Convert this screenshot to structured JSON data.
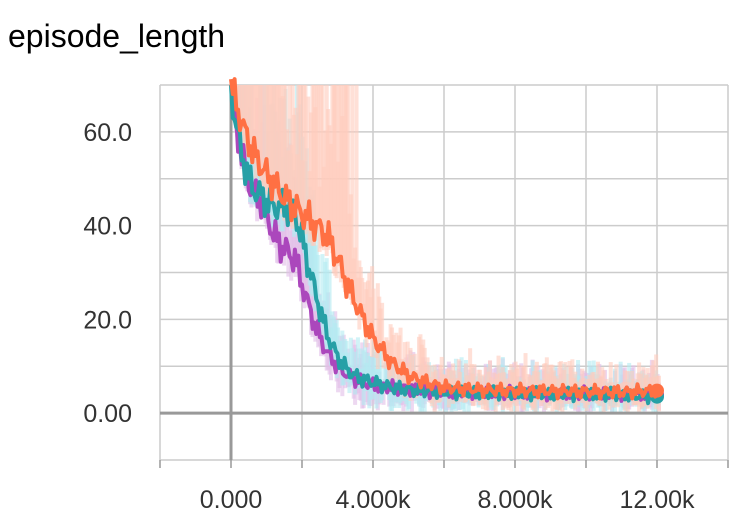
{
  "chart_data": {
    "type": "line",
    "title": "episode_length",
    "xlabel": "",
    "ylabel": "",
    "xlim": [
      -2000,
      14000
    ],
    "ylim": [
      -10,
      70
    ],
    "grid": true,
    "x_ticks": [
      0,
      4000,
      8000,
      12000
    ],
    "x_tick_labels": [
      "0.000",
      "4.000k",
      "8.000k",
      "12.00k"
    ],
    "y_ticks": [
      0,
      20,
      40,
      60
    ],
    "y_tick_labels": [
      "0.00",
      "20.0",
      "40.0",
      "60.0"
    ],
    "colors": {
      "orange": "#ff7043",
      "teal": "#26a0a6",
      "purple": "#ab47bc",
      "orange_raw": "#ffccbc",
      "teal_raw": "#b2ebf2",
      "purple_raw": "#e1bee7",
      "grid": "#cccccc",
      "axis": "#999999"
    },
    "series": [
      {
        "color": "#ab47bc",
        "x": [
          0,
          300,
          600,
          900,
          1200,
          1500,
          1800,
          2100,
          2400,
          2700,
          3000,
          3300,
          3600,
          4000,
          4500,
          5000,
          6000,
          7000,
          8000,
          9000,
          10000,
          11000,
          12000
        ],
        "y": [
          68,
          55,
          47,
          45,
          38,
          35,
          33,
          25,
          18,
          13,
          10,
          8,
          7,
          6,
          5.5,
          5,
          4.5,
          4.5,
          4.3,
          4.2,
          4.2,
          4.1,
          4.0
        ]
      },
      {
        "color": "#26a0a6",
        "x": [
          0,
          300,
          600,
          900,
          1200,
          1500,
          1800,
          2100,
          2400,
          2700,
          3000,
          3300,
          3600,
          4000,
          4500,
          5000,
          6000,
          7000,
          8000,
          9000,
          10000,
          11000,
          12000
        ],
        "y": [
          68,
          55,
          48,
          46,
          44,
          44,
          43,
          34,
          25,
          17,
          12,
          9,
          7.5,
          6.5,
          5.5,
          5,
          4.5,
          4.3,
          4.2,
          4.1,
          4.0,
          3.9,
          3.5
        ]
      },
      {
        "color": "#ff7043",
        "x": [
          0,
          300,
          600,
          900,
          1200,
          1500,
          1800,
          2100,
          2400,
          2700,
          3000,
          3300,
          3600,
          4000,
          4500,
          5000,
          5500,
          6000,
          7000,
          8000,
          9000,
          10000,
          11000,
          12000
        ],
        "y": [
          70,
          62,
          56,
          52,
          49,
          46,
          44,
          42,
          40,
          38,
          33,
          27,
          22,
          16,
          11,
          8,
          6.5,
          5.5,
          5,
          4.8,
          4.7,
          4.6,
          4.5,
          4.8
        ]
      }
    ]
  }
}
